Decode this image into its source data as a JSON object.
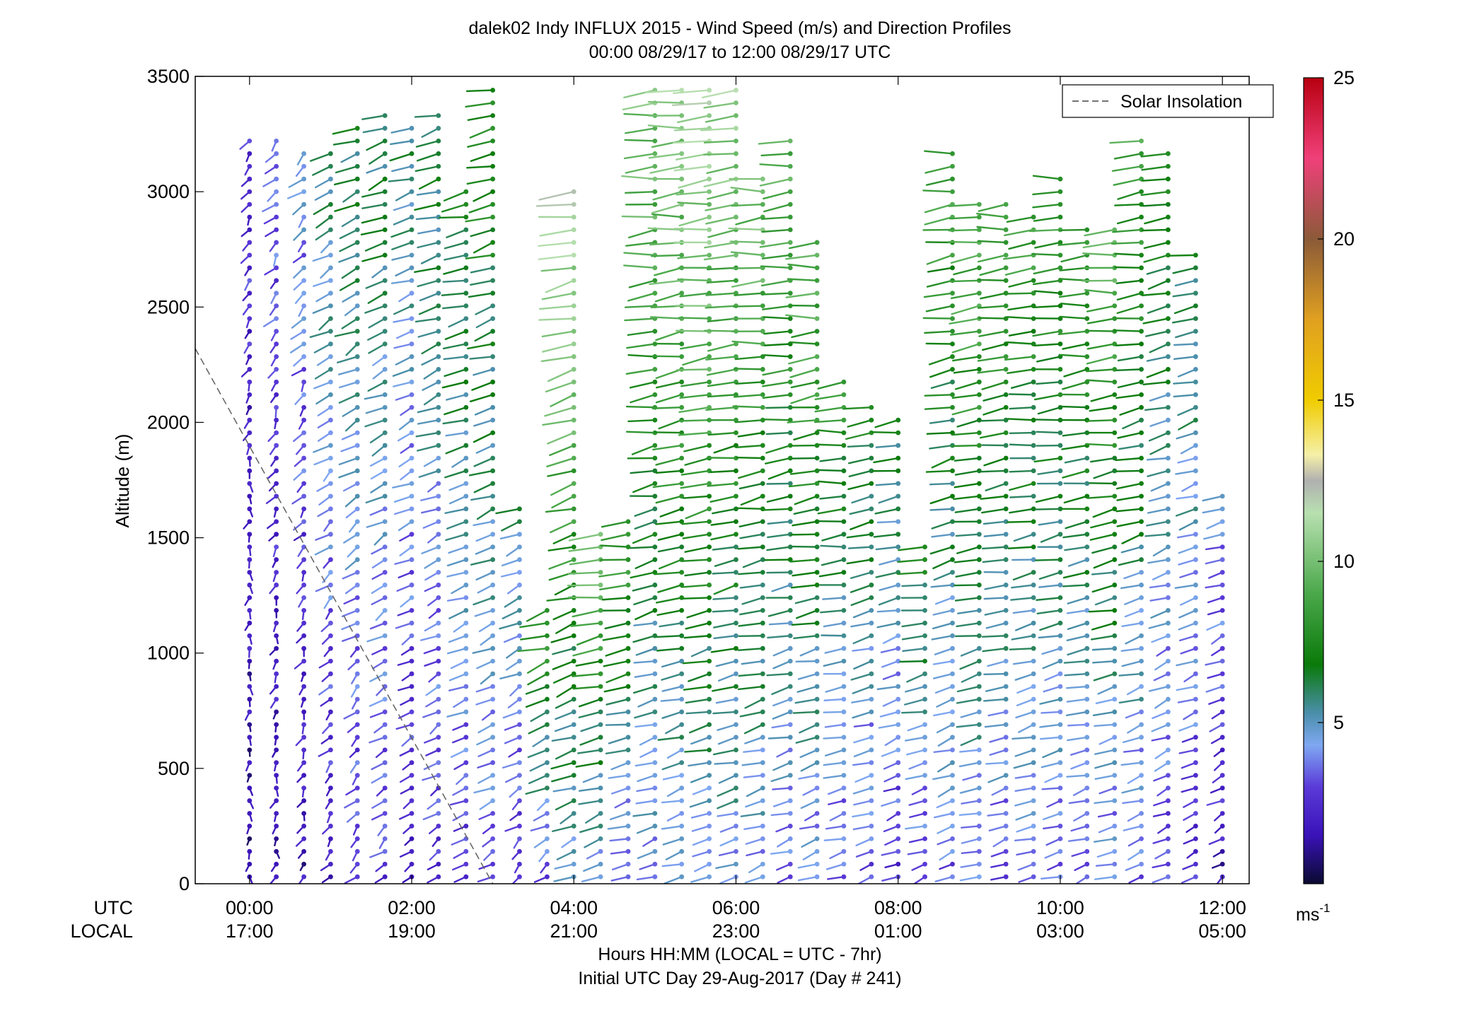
{
  "chart_data": {
    "type": "scatter",
    "title": "dalek02 Indy INFLUX 2015 - Wind Speed (m/s) and Direction Profiles",
    "subtitle": "00:00 08/29/17 to 12:00 08/29/17  UTC",
    "ylabel": "Altitude (m)",
    "ylim": [
      0,
      3500
    ],
    "yticks": [
      "0",
      "500",
      "1000",
      "1500",
      "2000",
      "2500",
      "3000",
      "3500"
    ],
    "xlim": [
      -0.67,
      12.33
    ],
    "xticks_utc": [
      "00:00",
      "02:00",
      "04:00",
      "06:00",
      "08:00",
      "10:00",
      "12:00"
    ],
    "xticks_local": [
      "17:00",
      "19:00",
      "21:00",
      "23:00",
      "01:00",
      "03:00",
      "05:00"
    ],
    "xrow_labels": [
      "UTC",
      "LOCAL"
    ],
    "xlabel_line1": "Hours HH:MM  (LOCAL = UTC - 7hr)",
    "xlabel_line2": "Initial UTC Day 29-Aug-2017 (Day # 241)",
    "legend": {
      "label": "Solar Insolation",
      "placement": "top-right",
      "line_style": "dashed",
      "color": "#606060"
    },
    "colorbar": {
      "range": [
        0,
        25
      ],
      "ticks": [
        "5",
        "10",
        "15",
        "20",
        "25"
      ],
      "unit": "ms",
      "unit_exp": "-1",
      "stops": [
        {
          "v": 0,
          "c": "#0a0a30"
        },
        {
          "v": 1.5,
          "c": "#3a12b8"
        },
        {
          "v": 3,
          "c": "#5a3ad8"
        },
        {
          "v": 4.3,
          "c": "#7fa8f2"
        },
        {
          "v": 5.3,
          "c": "#4a8eaa"
        },
        {
          "v": 6.8,
          "c": "#0a7a0a"
        },
        {
          "v": 9,
          "c": "#4aa84a"
        },
        {
          "v": 11.5,
          "c": "#b8e0b0"
        },
        {
          "v": 12.5,
          "c": "#b0b0b0"
        },
        {
          "v": 13.3,
          "c": "#f5f0a8"
        },
        {
          "v": 15,
          "c": "#f0cc00"
        },
        {
          "v": 17.5,
          "c": "#e0a020"
        },
        {
          "v": 20,
          "c": "#8b5a38"
        },
        {
          "v": 22.5,
          "c": "#f0407a"
        },
        {
          "v": 25,
          "c": "#b80010"
        }
      ]
    },
    "solar_insolation_line": {
      "x": [
        -0.67,
        3.0
      ],
      "y": [
        2320,
        0
      ]
    },
    "profiles": [
      {
        "t": 0.0,
        "bottom": 0,
        "top": 3270,
        "dir": 200,
        "speed": 2.0
      },
      {
        "t": 0.33,
        "bottom": 0,
        "top": 3270,
        "dir": 210,
        "speed": 2.5
      },
      {
        "t": 0.67,
        "bottom": 0,
        "top": 3200,
        "dir": 215,
        "speed": 3.0
      },
      {
        "t": 1.0,
        "bottom": 0,
        "top": 3200,
        "dir": 230,
        "speed": 4.0
      },
      {
        "t": 1.33,
        "bottom": 0,
        "top": 3300,
        "dir": 235,
        "speed": 4.5
      },
      {
        "t": 1.67,
        "bottom": 0,
        "top": 3380,
        "dir": 240,
        "speed": 4.5
      },
      {
        "t": 2.0,
        "bottom": 0,
        "top": 3300,
        "dir": 245,
        "speed": 4.0
      },
      {
        "t": 2.33,
        "bottom": 0,
        "top": 3330,
        "dir": 245,
        "speed": 4.5
      },
      {
        "t": 2.67,
        "bottom": 0,
        "top": 3000,
        "dir": 250,
        "speed": 5.0
      },
      {
        "t": 3.0,
        "bottom": 0,
        "top": 3470,
        "dir": 250,
        "speed": 5.5
      },
      {
        "t": 3.33,
        "bottom": 0,
        "top": 1650,
        "dir": 240,
        "speed": 4.0
      },
      {
        "t": 3.67,
        "bottom": 0,
        "top": 1200,
        "dir": 245,
        "speed": 6.0
      },
      {
        "t": 4.0,
        "bottom": 0,
        "top": 3000,
        "dir": 255,
        "speed": 8.0
      },
      {
        "t": 4.33,
        "bottom": 0,
        "top": 1550,
        "dir": 260,
        "speed": 7.0
      },
      {
        "t": 4.67,
        "bottom": 0,
        "top": 1600,
        "dir": 265,
        "speed": 6.0
      },
      {
        "t": 5.0,
        "bottom": 0,
        "top": 3450,
        "dir": 265,
        "speed": 7.0
      },
      {
        "t": 5.33,
        "bottom": 0,
        "top": 3480,
        "dir": 265,
        "speed": 7.5
      },
      {
        "t": 5.67,
        "bottom": 0,
        "top": 3480,
        "dir": 265,
        "speed": 8.0
      },
      {
        "t": 6.0,
        "bottom": 0,
        "top": 3480,
        "dir": 265,
        "speed": 7.5
      },
      {
        "t": 6.33,
        "bottom": 0,
        "top": 3100,
        "dir": 265,
        "speed": 7.0
      },
      {
        "t": 6.67,
        "bottom": 0,
        "top": 3260,
        "dir": 265,
        "speed": 6.5
      },
      {
        "t": 7.0,
        "bottom": 0,
        "top": 2800,
        "dir": 265,
        "speed": 6.5
      },
      {
        "t": 7.33,
        "bottom": 0,
        "top": 2200,
        "dir": 265,
        "speed": 5.5
      },
      {
        "t": 7.67,
        "bottom": 0,
        "top": 2100,
        "dir": 260,
        "speed": 5.0
      },
      {
        "t": 8.0,
        "bottom": 0,
        "top": 2050,
        "dir": 255,
        "speed": 4.5
      },
      {
        "t": 8.33,
        "bottom": 0,
        "top": 1500,
        "dir": 260,
        "speed": 5.0
      },
      {
        "t": 8.67,
        "bottom": 0,
        "top": 3180,
        "dir": 260,
        "speed": 6.0
      },
      {
        "t": 9.0,
        "bottom": 0,
        "top": 2950,
        "dir": 265,
        "speed": 6.5
      },
      {
        "t": 9.33,
        "bottom": 0,
        "top": 2950,
        "dir": 265,
        "speed": 6.0
      },
      {
        "t": 9.67,
        "bottom": 0,
        "top": 2900,
        "dir": 265,
        "speed": 6.0
      },
      {
        "t": 10.0,
        "bottom": 0,
        "top": 3080,
        "dir": 265,
        "speed": 6.0
      },
      {
        "t": 10.33,
        "bottom": 0,
        "top": 2880,
        "dir": 265,
        "speed": 6.0
      },
      {
        "t": 10.67,
        "bottom": 0,
        "top": 2880,
        "dir": 265,
        "speed": 6.5
      },
      {
        "t": 11.0,
        "bottom": 0,
        "top": 3250,
        "dir": 260,
        "speed": 6.0
      },
      {
        "t": 11.33,
        "bottom": 0,
        "top": 3200,
        "dir": 255,
        "speed": 5.0
      },
      {
        "t": 11.67,
        "bottom": 0,
        "top": 2750,
        "dir": 250,
        "speed": 4.5
      },
      {
        "t": 12.0,
        "bottom": 0,
        "top": 1700,
        "dir": 245,
        "speed": 3.0
      }
    ]
  }
}
